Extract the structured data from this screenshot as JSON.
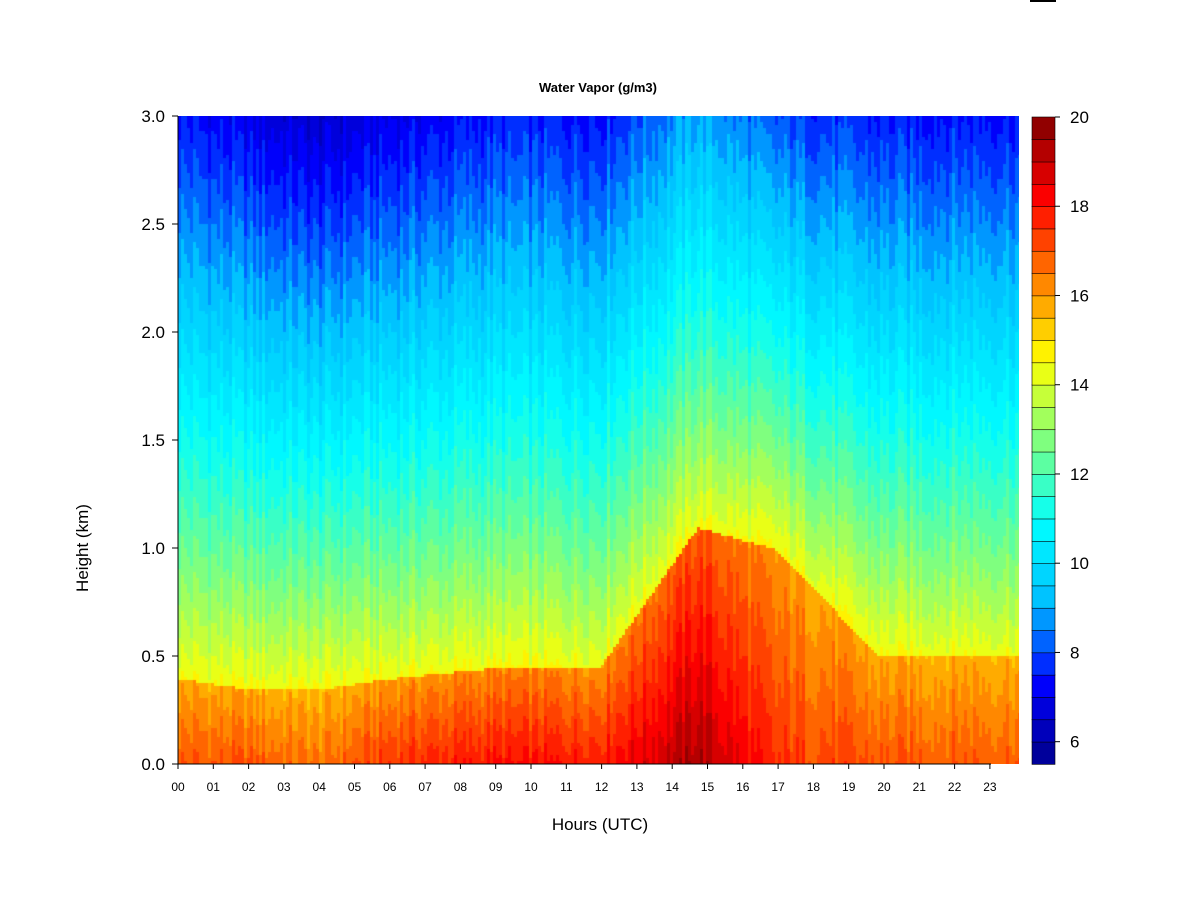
{
  "chart_data": {
    "type": "heatmap",
    "title": "Water Vapor (g/m3)",
    "xlabel": "Hours (UTC)",
    "ylabel": "Height (km)",
    "x_ticks": [
      "00",
      "01",
      "02",
      "03",
      "04",
      "05",
      "06",
      "07",
      "08",
      "09",
      "10",
      "11",
      "12",
      "13",
      "14",
      "15",
      "16",
      "17",
      "18",
      "19",
      "20",
      "21",
      "22",
      "23"
    ],
    "y_ticks": [
      "0.0",
      "0.5",
      "1.0",
      "1.5",
      "2.0",
      "2.5",
      "3.0"
    ],
    "xlim": [
      0,
      24
    ],
    "ylim": [
      0,
      3
    ],
    "colorbar": {
      "min": 5.5,
      "max": 20,
      "levels": 29,
      "tick_values": [
        6,
        8,
        10,
        12,
        14,
        16,
        18,
        20
      ],
      "tick_labels": [
        "6",
        "8",
        "10",
        "12",
        "14",
        "16",
        "18",
        "20"
      ]
    },
    "grid": false,
    "approx_profiles": [
      {
        "hour": 0,
        "surface": 17.0,
        "top_0_3km": 7.5,
        "sfc_layer_depth_km": 0.4
      },
      {
        "hour": 2,
        "surface": 17.0,
        "top_0_3km": 7.0,
        "sfc_layer_depth_km": 0.35
      },
      {
        "hour": 4,
        "surface": 16.5,
        "top_0_3km": 6.5,
        "sfc_layer_depth_km": 0.35
      },
      {
        "hour": 6,
        "surface": 17.5,
        "top_0_3km": 7.0,
        "sfc_layer_depth_km": 0.4
      },
      {
        "hour": 9,
        "surface": 18.0,
        "top_0_3km": 7.5,
        "sfc_layer_depth_km": 0.45
      },
      {
        "hour": 12,
        "surface": 18.0,
        "top_0_3km": 7.5,
        "sfc_layer_depth_km": 0.45
      },
      {
        "hour": 14.8,
        "surface": 19.5,
        "top_0_3km": 9.0,
        "sfc_layer_depth_km": 1.1
      },
      {
        "hour": 17,
        "surface": 17.5,
        "top_0_3km": 8.0,
        "sfc_layer_depth_km": 1.0
      },
      {
        "hour": 20,
        "surface": 17.0,
        "top_0_3km": 7.5,
        "sfc_layer_depth_km": 0.5
      },
      {
        "hour": 23,
        "surface": 17.0,
        "top_0_3km": 7.5,
        "sfc_layer_depth_km": 0.5
      }
    ]
  },
  "colors": {
    "scale": [
      "#00008b",
      "#0000ff",
      "#00bfff",
      "#00ffff",
      "#7fff7f",
      "#ffff00",
      "#ff7f00",
      "#ff0000",
      "#7f0000"
    ]
  }
}
